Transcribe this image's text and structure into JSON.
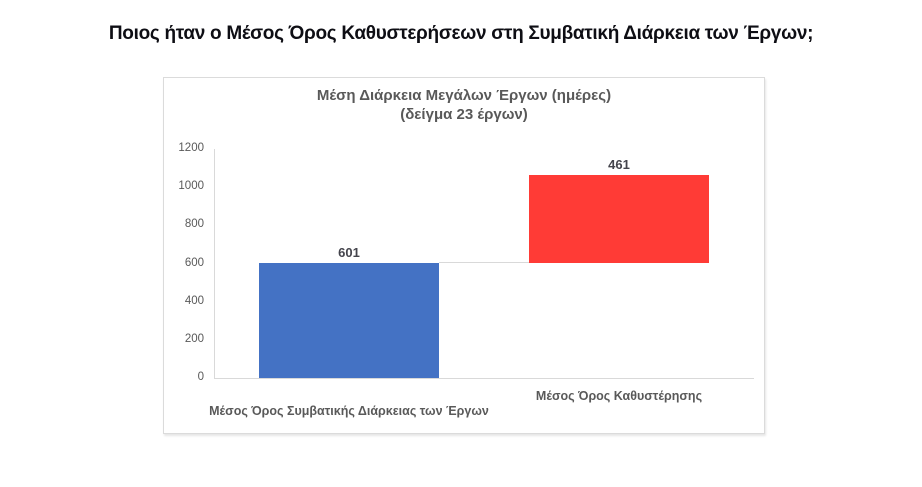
{
  "page": {
    "title": "Ποιος ήταν ο Μέσος Όρος Καθυστερήσεων στη Συμβατική Διάρκεια των Έργων;"
  },
  "chart_data": {
    "type": "bar",
    "subtype": "waterfall",
    "title": "Μέση Διάρκεια Μεγάλων Έργων (ημέρες)",
    "subtitle": "(δείγμα 23 έργων)",
    "categories": [
      "Μέσος Όρος Συμβατικής Διάρκειας των Έργων",
      "Μέσος Όρος Καθυστέρησης"
    ],
    "series": [
      {
        "name": "Μέσος Όρος Συμβατικής Διάρκειας των Έργων",
        "base": 0,
        "value": 601,
        "label": "601",
        "color": "#4472C4"
      },
      {
        "name": "Μέσος Όρος Καθυστέρησης",
        "base": 601,
        "value": 461,
        "label": "461",
        "color": "#FF3B36"
      }
    ],
    "ylim": [
      0,
      1200
    ],
    "yticks": [
      0,
      200,
      400,
      600,
      800,
      1000,
      1200
    ],
    "grid": false,
    "legend": false,
    "colors": {
      "axis": "#D9D9D9",
      "connector": "#D9D9D9",
      "tick_label": "#595959",
      "category_label": "#595959",
      "value_label": "#44444C",
      "chart_title": "#595959"
    }
  }
}
